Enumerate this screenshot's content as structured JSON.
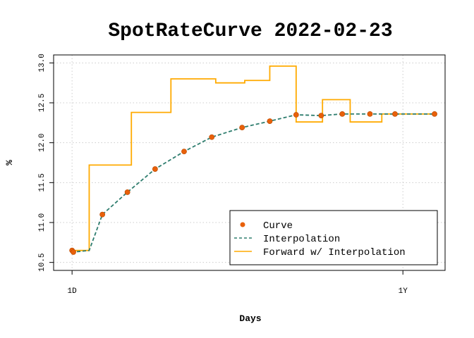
{
  "chart_data": {
    "type": "line",
    "title": "SpotRateCurve 2022-02-23",
    "xlabel": "Days",
    "ylabel": "%",
    "x_ticks": [
      {
        "label": "1D",
        "value": 1
      },
      {
        "label": "1Y",
        "value": 252
      }
    ],
    "xlim": [
      -13,
      284
    ],
    "ylim": [
      10.4,
      13.1
    ],
    "y_ticks": [
      10.5,
      11.0,
      11.5,
      12.0,
      12.5,
      13.0
    ],
    "grid": true,
    "legend_position": "bottom-right",
    "colors": {
      "curve": "#e8600a",
      "interpolation": "#2e7d6e",
      "forward": "#ffaa00"
    },
    "series": [
      {
        "name": "Curve",
        "kind": "points",
        "x": [
          1,
          2,
          24,
          43,
          64,
          86,
          107,
          130,
          151,
          171,
          190,
          206,
          227,
          246,
          276
        ],
        "y": [
          10.65,
          10.63,
          11.1,
          11.38,
          11.67,
          11.89,
          12.07,
          12.19,
          12.27,
          12.35,
          12.34,
          12.36,
          12.36,
          12.36,
          12.36
        ]
      },
      {
        "name": "Interpolation",
        "kind": "dashed-line",
        "x": [
          1,
          2,
          14,
          24,
          43,
          64,
          86,
          107,
          130,
          151,
          171,
          190,
          206,
          227,
          246,
          276
        ],
        "y": [
          10.65,
          10.63,
          10.65,
          11.1,
          11.38,
          11.67,
          11.89,
          12.07,
          12.19,
          12.27,
          12.35,
          12.34,
          12.36,
          12.36,
          12.36,
          12.36
        ]
      },
      {
        "name": "Forward w/ Interpolation",
        "kind": "step",
        "x": [
          1,
          2,
          14,
          46,
          76,
          110,
          132,
          151,
          171,
          191,
          212,
          236,
          276
        ],
        "y": [
          10.65,
          10.65,
          11.72,
          12.38,
          12.8,
          12.75,
          12.78,
          12.96,
          12.26,
          12.54,
          12.26,
          12.36,
          12.36
        ]
      }
    ]
  }
}
